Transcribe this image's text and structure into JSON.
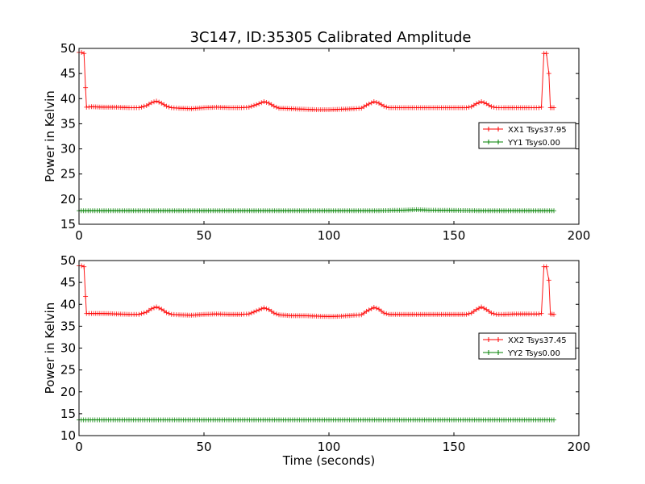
{
  "figure": {
    "title": "3C147, ID:35305 Calibrated Amplitude"
  },
  "chart_data": [
    {
      "type": "line",
      "ylabel": "Power in Kelvin",
      "xlabel": "",
      "xlim": [
        0,
        200
      ],
      "ylim": [
        15,
        50
      ],
      "xticks": [
        0,
        50,
        100,
        150,
        200
      ],
      "yticks": [
        15,
        20,
        25,
        30,
        35,
        40,
        45,
        50
      ],
      "grid": false,
      "legend_position": "center-right",
      "series": [
        {
          "name": "XX1 Tsys37.95",
          "color": "#ff0000",
          "marker": "plus",
          "points": [
            [
              0,
              49.2
            ],
            [
              1,
              49.2
            ],
            [
              2,
              49.0
            ],
            [
              2.6,
              42.2
            ],
            [
              3,
              38.3
            ],
            [
              5,
              38.4
            ],
            [
              10,
              38.3
            ],
            [
              15,
              38.3
            ],
            [
              20,
              38.2
            ],
            [
              24,
              38.2
            ],
            [
              27,
              38.6
            ],
            [
              29,
              39.2
            ],
            [
              31,
              39.5
            ],
            [
              33,
              39.1
            ],
            [
              35,
              38.5
            ],
            [
              37,
              38.2
            ],
            [
              40,
              38.1
            ],
            [
              45,
              38.0
            ],
            [
              50,
              38.2
            ],
            [
              55,
              38.3
            ],
            [
              60,
              38.2
            ],
            [
              65,
              38.2
            ],
            [
              68,
              38.3
            ],
            [
              71,
              38.8
            ],
            [
              74,
              39.4
            ],
            [
              76,
              39.1
            ],
            [
              78,
              38.5
            ],
            [
              80,
              38.1
            ],
            [
              85,
              38.0
            ],
            [
              90,
              37.9
            ],
            [
              95,
              37.8
            ],
            [
              100,
              37.8
            ],
            [
              105,
              37.9
            ],
            [
              110,
              38.0
            ],
            [
              113,
              38.1
            ],
            [
              115,
              38.7
            ],
            [
              118,
              39.4
            ],
            [
              120,
              39.1
            ],
            [
              122,
              38.5
            ],
            [
              124,
              38.2
            ],
            [
              130,
              38.2
            ],
            [
              135,
              38.2
            ],
            [
              140,
              38.2
            ],
            [
              145,
              38.2
            ],
            [
              150,
              38.2
            ],
            [
              155,
              38.2
            ],
            [
              157,
              38.4
            ],
            [
              159,
              39.0
            ],
            [
              161,
              39.4
            ],
            [
              163,
              39.0
            ],
            [
              165,
              38.4
            ],
            [
              167,
              38.2
            ],
            [
              170,
              38.2
            ],
            [
              175,
              38.2
            ],
            [
              180,
              38.2
            ],
            [
              184,
              38.2
            ],
            [
              185,
              38.3
            ],
            [
              186,
              49.0
            ],
            [
              187,
              49.0
            ],
            [
              188,
              45.0
            ],
            [
              188.6,
              38.2
            ],
            [
              190,
              38.2
            ]
          ]
        },
        {
          "name": "YY1 Tsys0.00",
          "color": "#008000",
          "marker": "plus",
          "points": [
            [
              0,
              17.7
            ],
            [
              20,
              17.7
            ],
            [
              40,
              17.7
            ],
            [
              60,
              17.7
            ],
            [
              80,
              17.7
            ],
            [
              100,
              17.7
            ],
            [
              120,
              17.7
            ],
            [
              130,
              17.8
            ],
            [
              135,
              17.9
            ],
            [
              140,
              17.8
            ],
            [
              160,
              17.7
            ],
            [
              180,
              17.7
            ],
            [
              190,
              17.7
            ]
          ]
        }
      ]
    },
    {
      "type": "line",
      "ylabel": "Power in Kelvin",
      "xlabel": "Time (seconds)",
      "xlim": [
        0,
        200
      ],
      "ylim": [
        10,
        50
      ],
      "xticks": [
        0,
        50,
        100,
        150,
        200
      ],
      "yticks": [
        10,
        15,
        20,
        25,
        30,
        35,
        40,
        45,
        50
      ],
      "grid": false,
      "legend_position": "center-right",
      "series": [
        {
          "name": "XX2 Tsys37.45",
          "color": "#ff0000",
          "marker": "plus",
          "points": [
            [
              0,
              48.8
            ],
            [
              1,
              48.8
            ],
            [
              2,
              48.6
            ],
            [
              2.6,
              41.8
            ],
            [
              3,
              37.9
            ],
            [
              5,
              37.9
            ],
            [
              10,
              37.9
            ],
            [
              15,
              37.8
            ],
            [
              20,
              37.7
            ],
            [
              24,
              37.7
            ],
            [
              27,
              38.2
            ],
            [
              29,
              39.0
            ],
            [
              31,
              39.4
            ],
            [
              33,
              38.9
            ],
            [
              35,
              38.1
            ],
            [
              37,
              37.7
            ],
            [
              40,
              37.6
            ],
            [
              45,
              37.5
            ],
            [
              50,
              37.7
            ],
            [
              55,
              37.8
            ],
            [
              60,
              37.7
            ],
            [
              65,
              37.7
            ],
            [
              68,
              37.8
            ],
            [
              71,
              38.5
            ],
            [
              74,
              39.2
            ],
            [
              76,
              38.8
            ],
            [
              78,
              38.0
            ],
            [
              80,
              37.6
            ],
            [
              85,
              37.4
            ],
            [
              90,
              37.4
            ],
            [
              95,
              37.3
            ],
            [
              100,
              37.2
            ],
            [
              105,
              37.3
            ],
            [
              110,
              37.5
            ],
            [
              113,
              37.6
            ],
            [
              115,
              38.4
            ],
            [
              118,
              39.3
            ],
            [
              120,
              38.9
            ],
            [
              122,
              38.0
            ],
            [
              124,
              37.7
            ],
            [
              130,
              37.7
            ],
            [
              135,
              37.7
            ],
            [
              140,
              37.7
            ],
            [
              145,
              37.7
            ],
            [
              150,
              37.7
            ],
            [
              155,
              37.7
            ],
            [
              157,
              38.0
            ],
            [
              159,
              38.8
            ],
            [
              161,
              39.4
            ],
            [
              163,
              38.8
            ],
            [
              165,
              38.0
            ],
            [
              167,
              37.7
            ],
            [
              170,
              37.7
            ],
            [
              175,
              37.8
            ],
            [
              180,
              37.8
            ],
            [
              184,
              37.8
            ],
            [
              185,
              37.9
            ],
            [
              186,
              48.6
            ],
            [
              187,
              48.6
            ],
            [
              188,
              45.5
            ],
            [
              188.6,
              37.8
            ],
            [
              190,
              37.7
            ]
          ]
        },
        {
          "name": "YY2 Tsys0.00",
          "color": "#008000",
          "marker": "plus",
          "points": [
            [
              0,
              13.6
            ],
            [
              20,
              13.6
            ],
            [
              40,
              13.6
            ],
            [
              60,
              13.6
            ],
            [
              80,
              13.6
            ],
            [
              100,
              13.6
            ],
            [
              120,
              13.6
            ],
            [
              140,
              13.6
            ],
            [
              160,
              13.6
            ],
            [
              180,
              13.6
            ],
            [
              190,
              13.6
            ]
          ]
        }
      ]
    }
  ]
}
